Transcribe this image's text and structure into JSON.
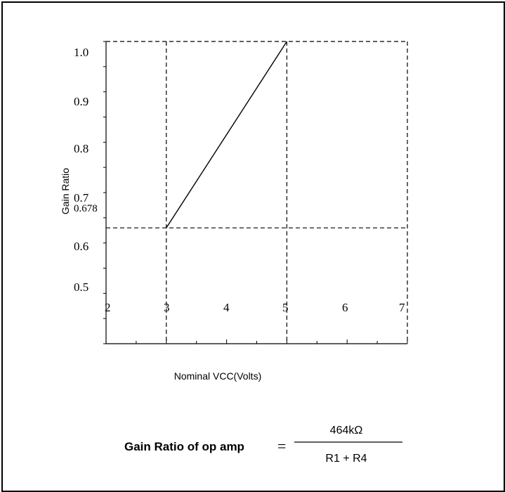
{
  "chart_data": {
    "type": "line",
    "xlabel": "Nominal VCC(Volts)",
    "ylabel": "Gain Ratio",
    "x_ticks": [
      "2",
      "3",
      "4",
      "5",
      "6",
      "7"
    ],
    "y_ticks": [
      "0.5",
      "0.6",
      "0.678",
      "0.7",
      "0.8",
      "0.9",
      "1.0"
    ],
    "xlim": [
      2,
      7
    ],
    "ylim": [
      0.4,
      1.0
    ],
    "series": [
      {
        "x": [
          3,
          5
        ],
        "y": [
          0.63,
          1.0
        ]
      }
    ],
    "reference_lines": {
      "vertical": [
        3,
        5,
        7
      ],
      "horizontal": [
        0.63,
        1.0
      ]
    },
    "grid": false,
    "line_color": "#000000"
  },
  "formula": {
    "lhs": "Gain Ratio of op amp",
    "equals": "=",
    "numerator": "464kΩ",
    "denominator": "R1 + R4"
  }
}
